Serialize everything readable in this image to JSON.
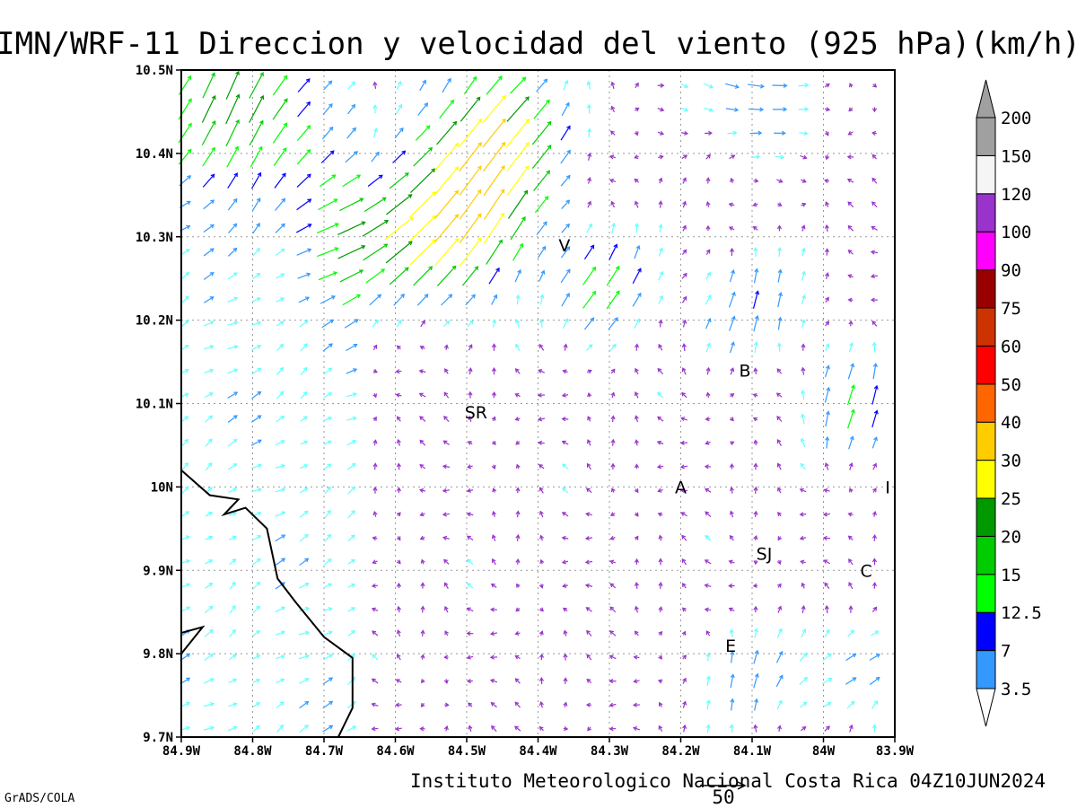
{
  "chart_data": {
    "type": "vector_field",
    "title": "IMN/WRF-11 Direccion y velocidad del viento (925 hPa)(km/h)",
    "credit": "Instituto Meteorologico Nacional Costa Rica 04Z10JUN2024",
    "software": "GrADS/COLA",
    "reference_vector": {
      "label": "50",
      "speed": 50
    },
    "x_range": [
      -84.9,
      -83.9
    ],
    "y_range": [
      9.7,
      10.5
    ],
    "x_ticks": [
      {
        "value": -84.9,
        "label": "84.9W"
      },
      {
        "value": -84.8,
        "label": "84.8W"
      },
      {
        "value": -84.7,
        "label": "84.7W"
      },
      {
        "value": -84.6,
        "label": "84.6W"
      },
      {
        "value": -84.5,
        "label": "84.5W"
      },
      {
        "value": -84.4,
        "label": "84.4W"
      },
      {
        "value": -84.3,
        "label": "84.3W"
      },
      {
        "value": -84.2,
        "label": "84.2W"
      },
      {
        "value": -84.1,
        "label": "84.1W"
      },
      {
        "value": -84.0,
        "label": "84W"
      },
      {
        "value": -83.9,
        "label": "83.9W"
      }
    ],
    "y_ticks": [
      {
        "value": 9.7,
        "label": "9.7N"
      },
      {
        "value": 9.8,
        "label": "9.8N"
      },
      {
        "value": 9.9,
        "label": "9.9N"
      },
      {
        "value": 10.0,
        "label": "10N"
      },
      {
        "value": 10.1,
        "label": "10.1N"
      },
      {
        "value": 10.2,
        "label": "10.2N"
      },
      {
        "value": 10.3,
        "label": "10.3N"
      },
      {
        "value": 10.4,
        "label": "10.4N"
      },
      {
        "value": 10.5,
        "label": "10.5N"
      }
    ],
    "grid": true,
    "colorbar": {
      "placement": "right",
      "bins": [
        {
          "label": "3.5",
          "color": "#66ffff"
        },
        {
          "label": "7",
          "color": "#3399ff"
        },
        {
          "label": "12.5",
          "color": "#0000ff"
        },
        {
          "label": "15",
          "color": "#00ff00"
        },
        {
          "label": "20",
          "color": "#00cc00"
        },
        {
          "label": "25",
          "color": "#009900"
        },
        {
          "label": "30",
          "color": "#ffff00"
        },
        {
          "label": "40",
          "color": "#ffcc00"
        },
        {
          "label": "50",
          "color": "#ff6600"
        },
        {
          "label": "60",
          "color": "#ff0000"
        },
        {
          "label": "75",
          "color": "#cc3300"
        },
        {
          "label": "90",
          "color": "#990000"
        },
        {
          "label": "100",
          "color": "#ff00ff"
        },
        {
          "label": "120",
          "color": "#9933cc"
        },
        {
          "label": "150",
          "color": "#f5f5f5"
        },
        {
          "label": "200",
          "color": "#a0a0a0"
        }
      ]
    },
    "speed_colors": [
      {
        "max": 3.5,
        "color": "#9933cc"
      },
      {
        "max": 7,
        "color": "#66ffff"
      },
      {
        "max": 12.5,
        "color": "#3399ff"
      },
      {
        "max": 15,
        "color": "#0000ff"
      },
      {
        "max": 20,
        "color": "#00ff00"
      },
      {
        "max": 25,
        "color": "#00cc00"
      },
      {
        "max": 30,
        "color": "#009900"
      },
      {
        "max": 40,
        "color": "#ffff00"
      },
      {
        "max": 50,
        "color": "#ffcc00"
      },
      {
        "max": 60,
        "color": "#ff6600"
      },
      {
        "max": 999,
        "color": "#ff0000"
      }
    ],
    "stations": [
      {
        "label": "V",
        "lon": -84.363,
        "lat": 10.29
      },
      {
        "label": "SR",
        "lon": -84.487,
        "lat": 10.09
      },
      {
        "label": "B",
        "lon": -84.11,
        "lat": 10.14
      },
      {
        "label": "A",
        "lon": -84.2,
        "lat": 10.0
      },
      {
        "label": "I",
        "lon": -83.91,
        "lat": 10.0
      },
      {
        "label": "SJ",
        "lon": -84.083,
        "lat": 9.92
      },
      {
        "label": "C",
        "lon": -83.94,
        "lat": 9.9
      },
      {
        "label": "E",
        "lon": -84.13,
        "lat": 9.81
      }
    ],
    "coastline": [
      [
        -84.9,
        10.02
      ],
      [
        -84.86,
        9.99
      ],
      [
        -84.82,
        9.985
      ],
      [
        -84.84,
        9.967
      ],
      [
        -84.81,
        9.975
      ],
      [
        -84.78,
        9.95
      ],
      [
        -84.765,
        9.89
      ],
      [
        -84.74,
        9.862
      ],
      [
        -84.7,
        9.82
      ],
      [
        -84.66,
        9.795
      ],
      [
        -84.66,
        9.735
      ],
      [
        -84.68,
        9.7
      ]
    ],
    "coastline2": [
      [
        -84.9,
        9.825
      ],
      [
        -84.87,
        9.832
      ],
      [
        -84.9,
        9.8
      ]
    ],
    "vector_regions": [
      {
        "lon": -84.82,
        "lat": 10.45,
        "u": 8,
        "v": 22,
        "r": 0.1
      },
      {
        "lon": -84.5,
        "lat": 10.32,
        "u": 20,
        "v": 28,
        "r": 0.09
      },
      {
        "lon": -84.46,
        "lat": 10.42,
        "u": 24,
        "v": 26,
        "r": 0.09
      },
      {
        "lon": -84.62,
        "lat": 10.3,
        "u": 22,
        "v": 10,
        "r": 0.09
      },
      {
        "lon": -84.3,
        "lat": 10.24,
        "u": 12,
        "v": 14,
        "r": 0.07
      },
      {
        "lon": -84.1,
        "lat": 10.48,
        "u": 12,
        "v": -3,
        "r": 0.1
      },
      {
        "lon": -83.95,
        "lat": 10.1,
        "u": 5,
        "v": 14,
        "r": 0.07
      },
      {
        "lon": -84.1,
        "lat": 10.22,
        "u": 6,
        "v": 11,
        "r": 0.07
      },
      {
        "lon": -83.95,
        "lat": 9.78,
        "u": 10,
        "v": 5,
        "r": 0.07
      },
      {
        "lon": -84.1,
        "lat": 9.77,
        "u": 5,
        "v": 8,
        "r": 0.07
      }
    ]
  }
}
